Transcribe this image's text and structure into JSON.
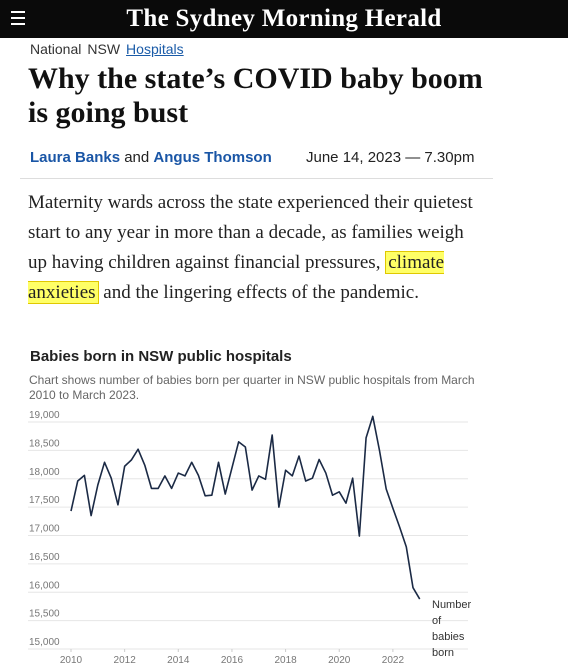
{
  "header": {
    "logo": "The Sydney Morning Herald"
  },
  "breadcrumbs": [
    "National",
    "NSW",
    "Hospitals"
  ],
  "headline": "Why the state’s COVID baby boom is going bust",
  "byline": {
    "author_1": "Laura Banks",
    "joiner": "and",
    "author_2": "Angus Thomson",
    "date": "June 14, 2023 — 7.30pm"
  },
  "paragraph": {
    "before": "Maternity wards across the state experienced their quietest start to any year in more than a decade, as families weigh up having children against financial pressures,",
    "highlight": "climate anxieties",
    "after": "and the lingering effects of the pandemic."
  },
  "chart_data": {
    "type": "line",
    "title": "Babies born in NSW public hospitals",
    "subtitle": "Chart shows number of babies born per quarter in NSW public hospitals from March 2010 to March 2023.",
    "x": [
      2010,
      2010.25,
      2010.5,
      2010.75,
      2011,
      2011.25,
      2011.5,
      2011.75,
      2012,
      2012.25,
      2012.5,
      2012.75,
      2013,
      2013.25,
      2013.5,
      2013.75,
      2014,
      2014.25,
      2014.5,
      2014.75,
      2015,
      2015.25,
      2015.5,
      2015.75,
      2016,
      2016.25,
      2016.5,
      2016.75,
      2017,
      2017.25,
      2017.5,
      2017.75,
      2018,
      2018.25,
      2018.5,
      2018.75,
      2019,
      2019.25,
      2019.5,
      2019.75,
      2020,
      2020.25,
      2020.5,
      2020.75,
      2021,
      2021.25,
      2021.5,
      2021.75,
      2022,
      2022.25,
      2022.5,
      2022.75,
      2023
    ],
    "series": [
      {
        "name": "Number of babies born",
        "color": "#1b2a45",
        "values": [
          17430,
          17960,
          18060,
          17350,
          17890,
          18290,
          18010,
          17540,
          18220,
          18330,
          18520,
          18240,
          17830,
          17830,
          18050,
          17830,
          18100,
          18050,
          18290,
          18060,
          17700,
          17710,
          18290,
          17730,
          18190,
          18650,
          18560,
          17800,
          18050,
          17990,
          18770,
          17500,
          18150,
          18050,
          18400,
          17960,
          18010,
          18340,
          18100,
          17710,
          17770,
          17570,
          18010,
          16990,
          18720,
          19100,
          18500,
          17820,
          17480,
          17150,
          16800,
          16080,
          15880
        ]
      }
    ],
    "xlim": [
      2010,
      2024.8
    ],
    "xticks": [
      2010,
      2012,
      2014,
      2016,
      2018,
      2020,
      2022
    ],
    "ylim": [
      15000,
      19000
    ],
    "yticks": [
      {
        "value": 15000,
        "label": "15,000"
      },
      {
        "value": 15500,
        "label": "15,500"
      },
      {
        "value": 16000,
        "label": "16,000"
      },
      {
        "value": 16500,
        "label": "16,500"
      },
      {
        "value": 17000,
        "label": "17,000"
      },
      {
        "value": 17500,
        "label": "17,500"
      },
      {
        "value": 18000,
        "label": "18,000"
      },
      {
        "value": 18500,
        "label": "18,500"
      },
      {
        "value": 19000,
        "label": "19,000"
      }
    ],
    "grid": true
  }
}
